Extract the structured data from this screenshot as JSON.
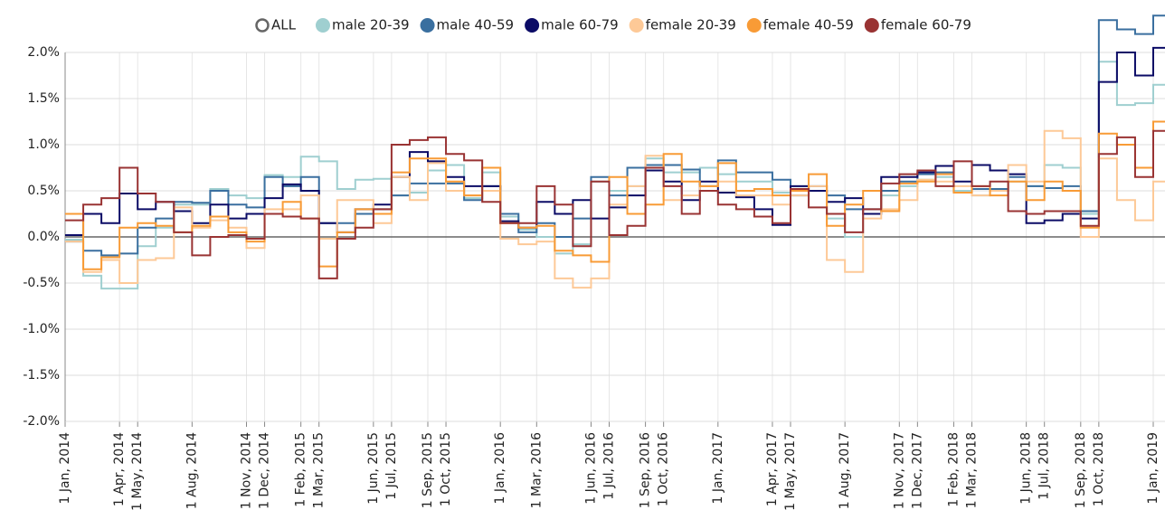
{
  "chart_data": {
    "type": "step-line",
    "legend_all": "ALL",
    "x": [
      "2014-01-01",
      "2014-02-01",
      "2014-03-01",
      "2014-04-01",
      "2014-05-01",
      "2014-06-01",
      "2014-07-01",
      "2014-08-01",
      "2014-09-01",
      "2014-10-01",
      "2014-11-01",
      "2014-12-01",
      "2015-01-01",
      "2015-02-01",
      "2015-03-01",
      "2015-04-01",
      "2015-05-01",
      "2015-06-01",
      "2015-07-01",
      "2015-08-01",
      "2015-09-01",
      "2015-10-01",
      "2015-11-01",
      "2015-12-01",
      "2016-01-01",
      "2016-02-01",
      "2016-03-01",
      "2016-04-01",
      "2016-05-01",
      "2016-06-01",
      "2016-07-01",
      "2016-08-01",
      "2016-09-01",
      "2016-10-01",
      "2016-11-01",
      "2016-12-01",
      "2017-01-01",
      "2017-02-01",
      "2017-03-01",
      "2017-04-01",
      "2017-05-01",
      "2017-06-01",
      "2017-07-01",
      "2017-08-01",
      "2017-09-01",
      "2017-10-01",
      "2017-11-01",
      "2017-12-01",
      "2018-01-01",
      "2018-02-01",
      "2018-03-01",
      "2018-04-01",
      "2018-05-01",
      "2018-06-01",
      "2018-07-01",
      "2018-08-01",
      "2018-09-01",
      "2018-10-01",
      "2018-11-01",
      "2018-12-01",
      "2019-01-01"
    ],
    "series": [
      {
        "name": "male 20-39",
        "color": "#9fcfd0",
        "values": [
          -0.03,
          -0.42,
          -0.56,
          -0.56,
          -0.1,
          0.1,
          0.35,
          0.35,
          0.52,
          0.45,
          0.42,
          0.67,
          0.65,
          0.87,
          0.82,
          0.52,
          0.62,
          0.63,
          0.45,
          0.48,
          0.72,
          0.78,
          0.42,
          0.7,
          0.22,
          0.08,
          0.0,
          -0.18,
          -0.08,
          0.6,
          0.5,
          0.55,
          0.85,
          0.7,
          0.7,
          0.75,
          0.68,
          0.6,
          0.6,
          0.48,
          0.55,
          0.5,
          0.2,
          0.0,
          0.25,
          0.45,
          0.55,
          0.62,
          0.65,
          0.5,
          0.45,
          0.5,
          0.6,
          0.55,
          0.78,
          0.75,
          0.25,
          1.9,
          1.43,
          1.45,
          1.65
        ]
      },
      {
        "name": "male 40-59",
        "color": "#3a6f9f",
        "values": [
          -0.05,
          -0.15,
          -0.2,
          -0.18,
          0.1,
          0.2,
          0.38,
          0.37,
          0.5,
          0.35,
          0.32,
          0.65,
          0.55,
          0.65,
          0.15,
          0.15,
          0.25,
          0.3,
          0.45,
          0.58,
          0.58,
          0.58,
          0.4,
          0.55,
          0.25,
          0.05,
          0.15,
          0.0,
          0.2,
          0.65,
          0.45,
          0.75,
          0.78,
          0.78,
          0.73,
          0.55,
          0.83,
          0.7,
          0.7,
          0.62,
          0.45,
          0.55,
          0.45,
          0.3,
          0.3,
          0.5,
          0.6,
          0.68,
          0.7,
          0.48,
          0.52,
          0.52,
          0.65,
          0.55,
          0.53,
          0.55,
          0.28,
          2.35,
          2.25,
          2.2,
          2.4
        ]
      },
      {
        "name": "male 60-79",
        "color": "#0b0b66",
        "values": [
          0.02,
          0.25,
          0.15,
          0.47,
          0.3,
          0.38,
          0.28,
          0.15,
          0.35,
          0.2,
          0.25,
          0.42,
          0.57,
          0.5,
          0.15,
          0.05,
          0.3,
          0.35,
          0.65,
          0.92,
          0.82,
          0.65,
          0.55,
          0.55,
          0.17,
          0.1,
          0.38,
          0.25,
          0.4,
          0.2,
          0.32,
          0.45,
          0.72,
          0.6,
          0.4,
          0.6,
          0.48,
          0.43,
          0.3,
          0.13,
          0.55,
          0.5,
          0.38,
          0.42,
          0.25,
          0.65,
          0.65,
          0.7,
          0.77,
          0.6,
          0.78,
          0.72,
          0.68,
          0.15,
          0.18,
          0.25,
          0.2,
          1.68,
          2.0,
          1.75,
          2.05
        ]
      },
      {
        "name": "female 20-39",
        "color": "#fdc997",
        "values": [
          -0.05,
          -0.38,
          -0.25,
          -0.5,
          -0.25,
          -0.23,
          0.32,
          0.1,
          0.18,
          0.1,
          -0.12,
          0.3,
          0.3,
          0.45,
          -0.02,
          0.4,
          0.4,
          0.15,
          0.65,
          0.4,
          0.8,
          0.5,
          0.45,
          0.5,
          -0.02,
          -0.08,
          -0.05,
          -0.45,
          -0.55,
          -0.45,
          0.35,
          0.55,
          0.88,
          0.4,
          0.45,
          0.55,
          0.6,
          0.45,
          0.45,
          0.35,
          0.45,
          0.55,
          -0.25,
          -0.38,
          0.2,
          0.3,
          0.4,
          0.62,
          0.6,
          0.55,
          0.45,
          0.5,
          0.78,
          0.6,
          1.15,
          1.07,
          0.0,
          0.85,
          0.4,
          0.18,
          0.6
        ]
      },
      {
        "name": "female 40-59",
        "color": "#f89b36",
        "values": [
          0.25,
          -0.35,
          -0.22,
          0.1,
          0.15,
          0.12,
          0.05,
          0.12,
          0.22,
          0.05,
          -0.05,
          0.25,
          0.38,
          0.2,
          -0.32,
          0.05,
          0.3,
          0.25,
          0.7,
          0.85,
          0.85,
          0.6,
          0.45,
          0.75,
          0.15,
          0.1,
          0.12,
          -0.15,
          -0.2,
          -0.27,
          0.65,
          0.25,
          0.35,
          0.9,
          0.6,
          0.55,
          0.8,
          0.5,
          0.52,
          0.45,
          0.5,
          0.68,
          0.12,
          0.35,
          0.5,
          0.28,
          0.58,
          0.6,
          0.68,
          0.48,
          0.55,
          0.45,
          0.6,
          0.4,
          0.6,
          0.5,
          0.1,
          1.12,
          1.0,
          0.75,
          1.25
        ]
      },
      {
        "name": "female 60-79",
        "color": "#993333",
        "values": [
          0.18,
          0.35,
          0.42,
          0.75,
          0.47,
          0.38,
          0.05,
          -0.2,
          0.0,
          0.02,
          -0.02,
          0.25,
          0.22,
          0.2,
          -0.45,
          -0.02,
          0.1,
          0.3,
          1.0,
          1.05,
          1.08,
          0.9,
          0.83,
          0.38,
          0.15,
          0.15,
          0.55,
          0.35,
          -0.1,
          0.6,
          0.02,
          0.12,
          0.75,
          0.55,
          0.25,
          0.5,
          0.35,
          0.3,
          0.22,
          0.15,
          0.52,
          0.32,
          0.25,
          0.05,
          0.3,
          0.58,
          0.68,
          0.72,
          0.55,
          0.82,
          0.55,
          0.6,
          0.28,
          0.25,
          0.28,
          0.28,
          0.12,
          0.9,
          1.08,
          0.65,
          1.15
        ]
      }
    ],
    "xlim": [
      "2014-01-01",
      "2019-01-01"
    ],
    "xticks": [
      {
        "value": "2014-01-01",
        "label": "1 Jan, 2014"
      },
      {
        "value": "2014-04-01",
        "label": "1 Apr, 2014"
      },
      {
        "value": "2014-05-01",
        "label": "1 May, 2014"
      },
      {
        "value": "2014-08-01",
        "label": "1 Aug, 2014"
      },
      {
        "value": "2014-11-01",
        "label": "1 Nov, 2014"
      },
      {
        "value": "2014-12-01",
        "label": "1 Dec, 2014"
      },
      {
        "value": "2015-02-01",
        "label": "1 Feb, 2015"
      },
      {
        "value": "2015-03-01",
        "label": "1 Mar, 2015"
      },
      {
        "value": "2015-06-01",
        "label": "1 Jun, 2015"
      },
      {
        "value": "2015-07-01",
        "label": "1 Jul, 2015"
      },
      {
        "value": "2015-09-01",
        "label": "1 Sep, 2015"
      },
      {
        "value": "2015-10-01",
        "label": "1 Oct, 2015"
      },
      {
        "value": "2016-01-01",
        "label": "1 Jan, 2016"
      },
      {
        "value": "2016-03-01",
        "label": "1 Mar, 2016"
      },
      {
        "value": "2016-06-01",
        "label": "1 Jun, 2016"
      },
      {
        "value": "2016-07-01",
        "label": "1 Jul, 2016"
      },
      {
        "value": "2016-09-01",
        "label": "1 Sep, 2016"
      },
      {
        "value": "2016-10-01",
        "label": "1 Oct, 2016"
      },
      {
        "value": "2017-01-01",
        "label": "1 Jan, 2017"
      },
      {
        "value": "2017-04-01",
        "label": "1 Apr, 2017"
      },
      {
        "value": "2017-05-01",
        "label": "1 May, 2017"
      },
      {
        "value": "2017-08-01",
        "label": "1 Aug, 2017"
      },
      {
        "value": "2017-11-01",
        "label": "1 Nov, 2017"
      },
      {
        "value": "2017-12-01",
        "label": "1 Dec, 2017"
      },
      {
        "value": "2018-02-01",
        "label": "1 Feb, 2018"
      },
      {
        "value": "2018-03-01",
        "label": "1 Mar, 2018"
      },
      {
        "value": "2018-06-01",
        "label": "1 Jun, 2018"
      },
      {
        "value": "2018-07-01",
        "label": "1 Jul, 2018"
      },
      {
        "value": "2018-09-01",
        "label": "1 Sep, 2018"
      },
      {
        "value": "2018-10-01",
        "label": "1 Oct, 2018"
      },
      {
        "value": "2019-01-01",
        "label": "1 Jan, 2019"
      }
    ],
    "ylim": [
      -2,
      2
    ],
    "yticks": [
      {
        "value": -2,
        "label": "-2.0%"
      },
      {
        "value": -1.5,
        "label": "-1.5%"
      },
      {
        "value": -1,
        "label": "-1.0%"
      },
      {
        "value": -0.5,
        "label": "-0.5%"
      },
      {
        "value": 0,
        "label": "0.0%"
      },
      {
        "value": 0.5,
        "label": "0.5%"
      },
      {
        "value": 1,
        "label": "1.0%"
      },
      {
        "value": 1.5,
        "label": "1.5%"
      },
      {
        "value": 2,
        "label": "2.0%"
      }
    ],
    "grid": true,
    "legend": "top"
  }
}
